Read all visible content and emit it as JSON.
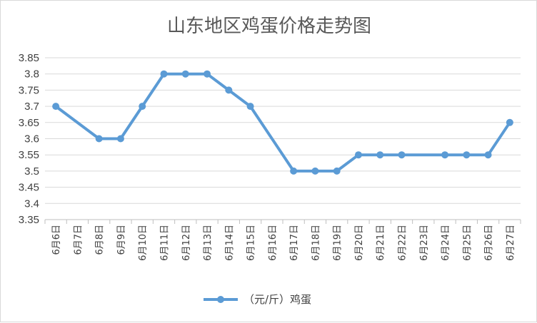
{
  "chart_data": {
    "type": "line",
    "title": "山东地区鸡蛋价格走势图",
    "xlabel": "",
    "ylabel": "",
    "categories": [
      "6月6日",
      "6月7日",
      "6月8日",
      "6月9日",
      "6月10日",
      "6月11日",
      "6月12日",
      "6月13日",
      "6月14日",
      "6月15日",
      "6月16日",
      "6月17日",
      "6月18日",
      "6月19日",
      "6月20日",
      "6月21日",
      "6月22日",
      "6月23日",
      "6月24日",
      "6月25日",
      "6月26日",
      "6月27日"
    ],
    "series": [
      {
        "name": "（元/斤）鸡蛋",
        "color": "#5b9bd5",
        "values": [
          3.7,
          null,
          3.6,
          3.6,
          3.7,
          3.8,
          3.8,
          3.8,
          3.75,
          3.7,
          null,
          3.5,
          3.5,
          3.5,
          3.55,
          3.55,
          3.55,
          null,
          3.55,
          3.55,
          3.55,
          3.65
        ]
      }
    ],
    "ylim": [
      3.35,
      3.85
    ],
    "yticks": [
      "3.35",
      "3.4",
      "3.45",
      "3.5",
      "3.55",
      "3.6",
      "3.65",
      "3.7",
      "3.75",
      "3.8",
      "3.85"
    ],
    "grid": true,
    "legend": "bottom"
  }
}
